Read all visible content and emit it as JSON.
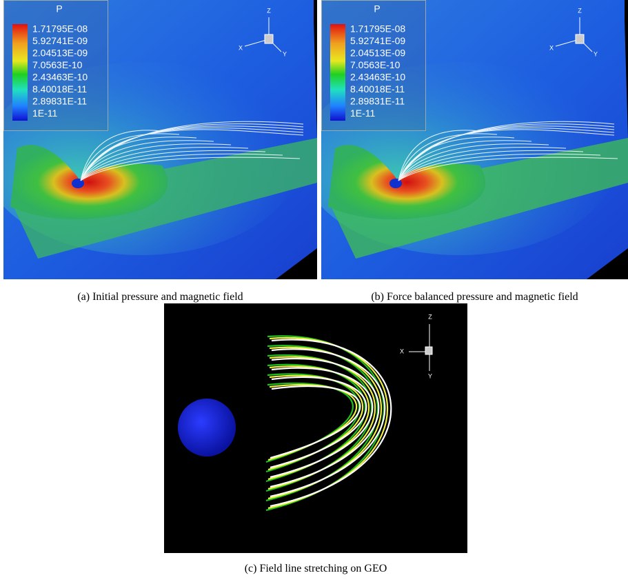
{
  "figures": [
    {
      "legend": {
        "title": "P",
        "labels": [
          "1.71795E-08",
          "5.92741E-09",
          "2.04513E-09",
          "7.0563E-10",
          "2.43463E-10",
          "8.40018E-11",
          "2.89831E-11",
          "1E-11"
        ]
      },
      "axes": {
        "z": "Z",
        "x": "X",
        "y": "Y"
      },
      "caption": "(a) Initial pressure and magnetic field"
    },
    {
      "legend": {
        "title": "P",
        "labels": [
          "1.71795E-08",
          "5.92741E-09",
          "2.04513E-09",
          "7.0563E-10",
          "2.43463E-10",
          "8.40018E-11",
          "2.89831E-11",
          "1E-11"
        ]
      },
      "axes": {
        "z": "Z",
        "x": "X",
        "y": "Y"
      },
      "caption": "(b) Force balanced pressure and magnetic field"
    },
    {
      "axes": {
        "z": "Z",
        "x": "X",
        "y": "Y"
      },
      "caption": "(c) Field line stretching on GEO"
    }
  ]
}
